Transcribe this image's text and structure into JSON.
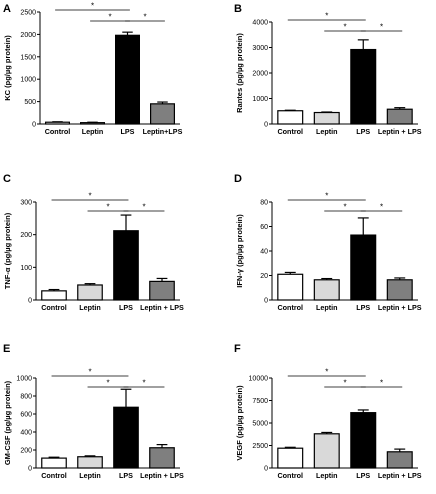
{
  "chart_data": [
    {
      "panel": "A",
      "type": "bar",
      "ylabel": "KC (pg/µg protein)",
      "ylim": [
        0,
        2500
      ],
      "yticks": [
        0,
        500,
        1000,
        1500,
        2000,
        2500
      ],
      "categories": [
        "Control",
        "Leptin",
        "LPS",
        "Leptin+LPS"
      ],
      "values": [
        40,
        30,
        1980,
        450
      ],
      "errors": [
        10,
        10,
        70,
        40
      ],
      "fills": [
        "#ffffff",
        "#d9d9d9",
        "#000000",
        "#7f7f7f"
      ],
      "significance": [
        {
          "from": 0,
          "to": 2,
          "label": "*"
        },
        {
          "from": 1,
          "to": 2,
          "label": "*"
        },
        {
          "from": 2,
          "to": 3,
          "label": "*"
        }
      ]
    },
    {
      "panel": "B",
      "type": "bar",
      "ylabel": "Rantes (pg/µg protein)",
      "ylim": [
        0,
        4000
      ],
      "yticks": [
        0,
        1000,
        2000,
        3000,
        4000
      ],
      "categories": [
        "Control",
        "Leptin",
        "LPS",
        "Leptin + LPS"
      ],
      "values": [
        520,
        450,
        2920,
        580
      ],
      "errors": [
        20,
        20,
        380,
        60
      ],
      "fills": [
        "#ffffff",
        "#d9d9d9",
        "#000000",
        "#7f7f7f"
      ],
      "significance": [
        {
          "from": 0,
          "to": 2,
          "label": "*"
        },
        {
          "from": 1,
          "to": 2,
          "label": "*"
        },
        {
          "from": 2,
          "to": 3,
          "label": "*"
        }
      ]
    },
    {
      "panel": "C",
      "type": "bar",
      "ylabel": "TNF-α (pg/µg protein)",
      "ylim": [
        0,
        300
      ],
      "yticks": [
        0,
        100,
        200,
        300
      ],
      "categories": [
        "Control",
        "Leptin",
        "LPS",
        "Leptin + LPS"
      ],
      "values": [
        28,
        46,
        212,
        57
      ],
      "errors": [
        4,
        4,
        48,
        9
      ],
      "fills": [
        "#ffffff",
        "#d9d9d9",
        "#000000",
        "#7f7f7f"
      ],
      "significance": [
        {
          "from": 0,
          "to": 2,
          "label": "*"
        },
        {
          "from": 1,
          "to": 2,
          "label": "*"
        },
        {
          "from": 2,
          "to": 3,
          "label": "*"
        }
      ]
    },
    {
      "panel": "D",
      "type": "bar",
      "ylabel": "IFN-γ (pg/µg protein)",
      "ylim": [
        0,
        80
      ],
      "yticks": [
        0,
        20,
        40,
        60,
        80
      ],
      "categories": [
        "Control",
        "Leptin",
        "LPS",
        "Leptin + LPS"
      ],
      "values": [
        21,
        16.5,
        53,
        16.5
      ],
      "errors": [
        1.5,
        1,
        14,
        1.5
      ],
      "fills": [
        "#ffffff",
        "#d9d9d9",
        "#000000",
        "#7f7f7f"
      ],
      "significance": [
        {
          "from": 0,
          "to": 2,
          "label": "*"
        },
        {
          "from": 1,
          "to": 2,
          "label": "*"
        },
        {
          "from": 2,
          "to": 3,
          "label": "*"
        }
      ]
    },
    {
      "panel": "E",
      "type": "bar",
      "ylabel": "GM-CSF (pg/µg protein)",
      "ylim": [
        0,
        1000
      ],
      "yticks": [
        0,
        200,
        400,
        600,
        800,
        1000
      ],
      "categories": [
        "Control",
        "Leptin",
        "LPS",
        "Leptin + LPS"
      ],
      "values": [
        110,
        125,
        675,
        225
      ],
      "errors": [
        10,
        10,
        200,
        35
      ],
      "fills": [
        "#ffffff",
        "#d9d9d9",
        "#000000",
        "#7f7f7f"
      ],
      "significance": [
        {
          "from": 0,
          "to": 2,
          "label": "*"
        },
        {
          "from": 1,
          "to": 2,
          "label": "*"
        },
        {
          "from": 2,
          "to": 3,
          "label": "*"
        }
      ]
    },
    {
      "panel": "F",
      "type": "bar",
      "ylabel": "VEGF (pg/µg protein)",
      "ylim": [
        0,
        10000
      ],
      "yticks": [
        0,
        2500,
        5000,
        7500,
        10000
      ],
      "categories": [
        "Control",
        "Leptin",
        "LPS",
        "Leptin + LPS"
      ],
      "values": [
        2200,
        3800,
        6150,
        1800
      ],
      "errors": [
        100,
        150,
        300,
        300
      ],
      "fills": [
        "#ffffff",
        "#d9d9d9",
        "#000000",
        "#7f7f7f"
      ],
      "significance": [
        {
          "from": 0,
          "to": 2,
          "label": "*"
        },
        {
          "from": 1,
          "to": 2,
          "label": "*"
        },
        {
          "from": 2,
          "to": 3,
          "label": "*"
        }
      ]
    }
  ]
}
